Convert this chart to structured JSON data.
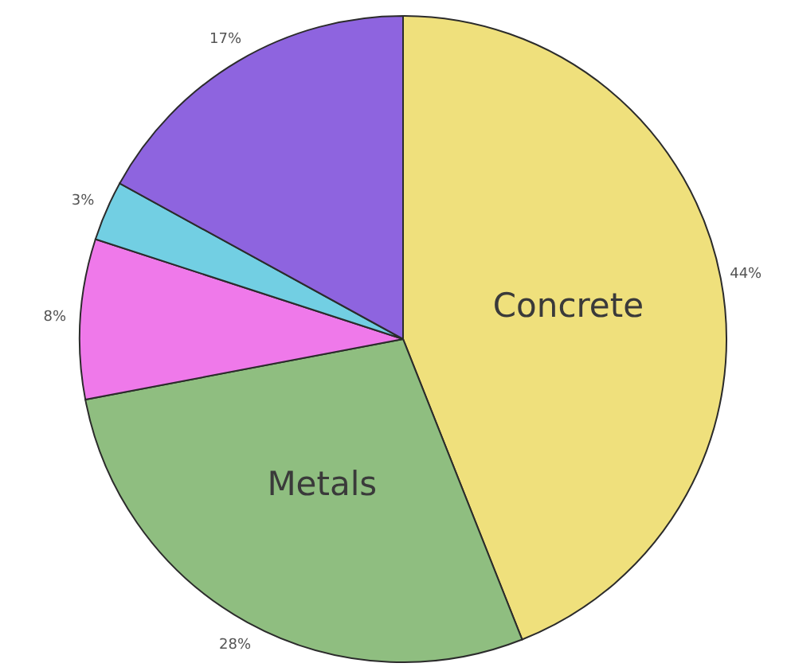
{
  "chart_data": {
    "type": "pie",
    "categories": [
      "Concrete",
      "Metals",
      null,
      null,
      null
    ],
    "values": [
      44,
      28,
      8,
      3,
      17
    ],
    "colors": [
      "#efe07c",
      "#8fbe80",
      "#ef79ea",
      "#72cfe3",
      "#8e64df"
    ],
    "value_labels": [
      "44%",
      "28%",
      "8%",
      "3%",
      "17%"
    ]
  }
}
